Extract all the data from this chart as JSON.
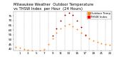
{
  "title": "Milwaukee Weather  Outdoor Temperature vs THSW Index per Hour (24 Hours)",
  "hours": [
    0,
    1,
    2,
    3,
    4,
    5,
    6,
    7,
    8,
    9,
    10,
    11,
    12,
    13,
    14,
    15,
    16,
    17,
    18,
    19,
    20,
    21,
    22,
    23
  ],
  "outdoor_temp": [
    42,
    41,
    40,
    39,
    38,
    37,
    38,
    40,
    45,
    51,
    57,
    62,
    65,
    66,
    64,
    61,
    57,
    54,
    51,
    49,
    47,
    46,
    45,
    44
  ],
  "thsw_index": [
    null,
    null,
    null,
    null,
    null,
    null,
    null,
    null,
    null,
    54,
    62,
    70,
    76,
    78,
    76,
    70,
    63,
    55,
    null,
    null,
    null,
    null,
    null,
    null
  ],
  "outdoor_temp_color": "#ff8800",
  "thsw_color": "#cc0000",
  "bg_color": "#ffffff",
  "grid_color": "#aaaaaa",
  "ylim": [
    38,
    80
  ],
  "yticks": [
    40,
    45,
    50,
    55,
    60,
    65,
    70,
    75
  ],
  "legend_temp_label": "Outdoor Temp",
  "legend_thsw_label": "THSW Index",
  "title_fontsize": 3.8,
  "tick_fontsize": 3.0,
  "legend_color_temp": "#ff8800",
  "legend_color_thsw": "#cc0000",
  "legend_color_block": "#ff0000"
}
